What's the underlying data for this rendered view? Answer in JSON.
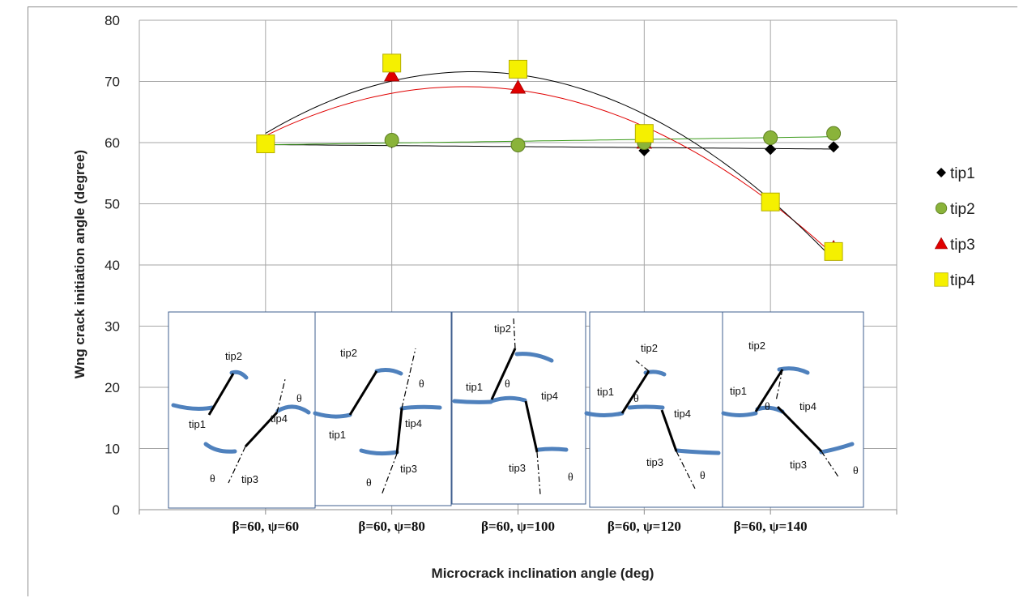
{
  "chart_data": {
    "type": "scatter",
    "title": "",
    "xlabel": "Microcrack inclination angle (deg)",
    "ylabel": "Wng crack initiation  angle (degree)",
    "ylim": [
      0,
      80
    ],
    "yticks": [
      0,
      10,
      20,
      30,
      40,
      50,
      60,
      70,
      80
    ],
    "xlim": [
      40,
      160
    ],
    "grid": true,
    "legend_position": "right",
    "x": [
      60,
      80,
      100,
      120,
      140,
      150
    ],
    "categories": [
      "β=60, ψ=60",
      "β=60, ψ=80",
      "β=60, ψ=100",
      "β=60, ψ=120",
      "β=60, ψ=140"
    ],
    "category_x": [
      60,
      80,
      100,
      120,
      140
    ],
    "series": [
      {
        "name": "tip1",
        "marker": "diamond",
        "color": "#000000",
        "x": [
          60,
          80,
          100,
          120,
          140,
          150
        ],
        "values": [
          59.5,
          60,
          59.3,
          58.7,
          58.9,
          59.3
        ]
      },
      {
        "name": "tip2",
        "marker": "circle",
        "color": "#8ab33a",
        "x": [
          60,
          80,
          100,
          120,
          140,
          150
        ],
        "values": [
          59.8,
          60.4,
          59.6,
          60.0,
          60.8,
          61.5
        ]
      },
      {
        "name": "tip3",
        "marker": "triangle",
        "color": "#e00000",
        "x": [
          60,
          80,
          100,
          120,
          140,
          150
        ],
        "values": [
          59.5,
          71.0,
          69.0,
          60.0,
          50.0,
          42.8
        ]
      },
      {
        "name": "tip4",
        "marker": "square",
        "color": "#f5f000",
        "x": [
          60,
          80,
          100,
          120,
          140,
          150
        ],
        "values": [
          59.8,
          73.0,
          72.0,
          61.5,
          50.3,
          42.2
        ]
      }
    ],
    "trendlines": [
      {
        "series": "tip1",
        "kind": "linear",
        "color": "#000000"
      },
      {
        "series": "tip2",
        "kind": "linear",
        "color": "#3a9a1a"
      },
      {
        "series": "tip3",
        "kind": "polynomial",
        "color": "#e00000"
      },
      {
        "series": "tip4",
        "kind": "polynomial",
        "color": "#000000"
      }
    ]
  },
  "insets": [
    {
      "labels": {
        "tip1": "tip1",
        "tip2": "tip2",
        "tip3": "tip3",
        "tip4": "tip4",
        "theta1": "θ",
        "theta2": "θ"
      }
    },
    {
      "labels": {
        "tip1": "tip1",
        "tip2": "tip2",
        "tip3": "tip3",
        "tip4": "tip4",
        "theta1": "θ",
        "theta2": "θ"
      }
    },
    {
      "labels": {
        "tip1": "tip1",
        "tip2": "tip2",
        "tip3": "tip3",
        "tip4": "tip4",
        "theta1": "θ",
        "theta2": "θ"
      }
    },
    {
      "labels": {
        "tip1": "tip1",
        "tip2": "tip2",
        "tip3": "tip3",
        "tip4": "tip4",
        "theta1": "θ",
        "theta2": "θ"
      }
    },
    {
      "labels": {
        "tip1": "tip1",
        "tip2": "tip2",
        "tip3": "tip3",
        "tip4": "tip4",
        "theta1": "θ",
        "theta2": "θ"
      }
    }
  ]
}
